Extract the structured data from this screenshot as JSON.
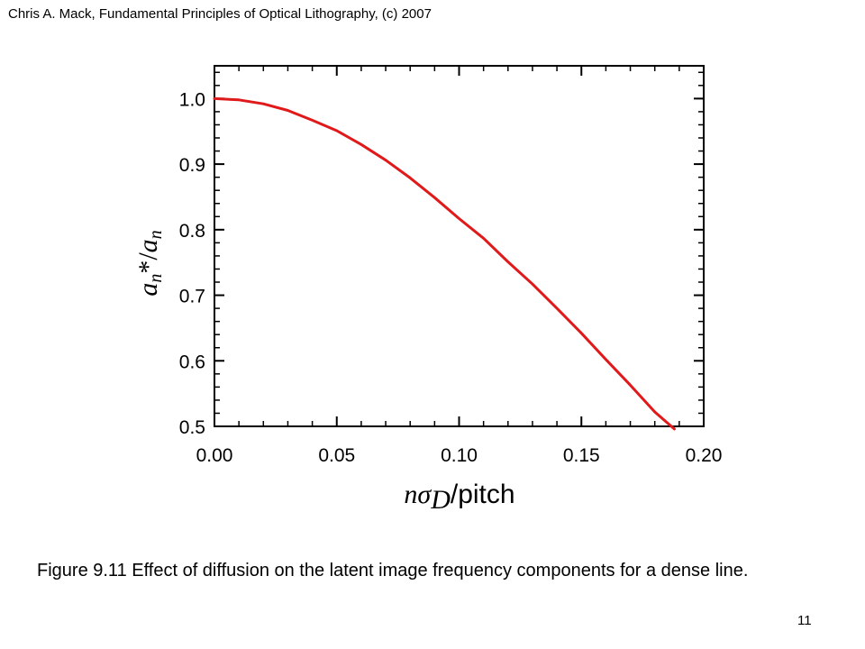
{
  "header": {
    "text": "Chris A. Mack, Fundamental Principles of Optical Lithography, (c) 2007"
  },
  "caption": {
    "text": "Figure 9.11  Effect of diffusion on the latent image frequency components for a dense line."
  },
  "page_number": "11",
  "chart_data": {
    "type": "line",
    "title": "",
    "ylabel": "an*/an",
    "xlabel": "nσD/pitch",
    "xlim": [
      0.0,
      0.2
    ],
    "ylim": [
      0.5,
      1.05
    ],
    "x_ticks": [
      "0.00",
      "0.05",
      "0.10",
      "0.15",
      "0.20"
    ],
    "y_ticks": [
      "0.5",
      "0.6",
      "0.7",
      "0.8",
      "0.9",
      "1.0"
    ],
    "grid": false,
    "line_color": "#e0191b",
    "series": [
      {
        "x": [
          0.0,
          0.01,
          0.02,
          0.03,
          0.04,
          0.05,
          0.06,
          0.07,
          0.08,
          0.09,
          0.1,
          0.11,
          0.12,
          0.13,
          0.14,
          0.15,
          0.16,
          0.17,
          0.18,
          0.188
        ],
        "y": [
          1.0,
          0.998,
          0.992,
          0.982,
          0.967,
          0.951,
          0.93,
          0.906,
          0.879,
          0.849,
          0.817,
          0.787,
          0.751,
          0.717,
          0.68,
          0.642,
          0.602,
          0.563,
          0.522,
          0.496
        ]
      }
    ]
  }
}
